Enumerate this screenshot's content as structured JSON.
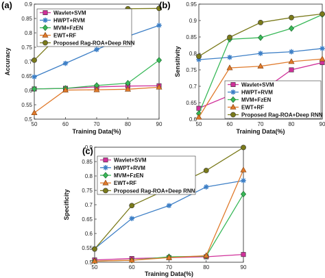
{
  "chart_data": [
    {
      "type": "line",
      "panel_label": "(a)",
      "xlabel": "Training Data(%)",
      "ylabel": "Accuracy",
      "x": [
        50,
        60,
        70,
        80,
        90
      ],
      "xticks": [
        "50",
        "60",
        "70",
        "80",
        "90"
      ],
      "ylim": [
        0.5,
        0.9
      ],
      "yticks": [
        "0.5",
        "0.55",
        "0.6",
        "0.65",
        "0.7",
        "0.75",
        "0.8",
        "0.85",
        "0.9"
      ],
      "legend_position": "top-left",
      "series": [
        {
          "name": "Wavlet+SVM",
          "color": "#d0309a",
          "marker": "square",
          "values": [
            0.605,
            0.607,
            0.612,
            0.615,
            0.616
          ]
        },
        {
          "name": "HWPT+RVM",
          "color": "#3d7fc6",
          "marker": "star",
          "values": [
            0.647,
            0.694,
            0.742,
            0.788,
            0.826
          ]
        },
        {
          "name": "MVM+FzEN",
          "color": "#38b858",
          "marker": "diamond",
          "values": [
            0.605,
            0.607,
            0.617,
            0.625,
            0.705
          ]
        },
        {
          "name": "EWT+RF",
          "color": "#e07a2b",
          "marker": "triangle",
          "values": [
            0.522,
            0.601,
            0.602,
            0.604,
            0.611
          ]
        },
        {
          "name": "Proposed Rag-ROA+Deep RNN",
          "color": "#7a7a1a",
          "marker": "circle",
          "values": [
            0.705,
            0.814,
            0.861,
            0.884,
            0.885
          ]
        }
      ]
    },
    {
      "type": "line",
      "panel_label": "(b)",
      "xlabel": "Training Data(%)",
      "ylabel": "Sensitivity",
      "x": [
        50,
        60,
        70,
        80,
        90
      ],
      "xticks": [
        "50",
        "60",
        "70",
        "80",
        "90"
      ],
      "ylim": [
        0.6,
        0.95
      ],
      "yticks": [
        "0.6",
        "0.65",
        "0.7",
        "0.75",
        "0.8",
        "0.85",
        "0.9",
        "0.95"
      ],
      "legend_position": "bottom-right",
      "series": [
        {
          "name": "Wavlet+SVM",
          "color": "#d0309a",
          "marker": "square",
          "values": [
            0.633,
            0.672,
            0.683,
            0.75,
            0.772
          ]
        },
        {
          "name": "HWPT+RVM",
          "color": "#3d7fc6",
          "marker": "star",
          "values": [
            0.781,
            0.788,
            0.8,
            0.805,
            0.815
          ]
        },
        {
          "name": "MVM+FzEN",
          "color": "#38b858",
          "marker": "diamond",
          "values": [
            0.617,
            0.843,
            0.848,
            0.876,
            0.918
          ]
        },
        {
          "name": "EWT+RF",
          "color": "#e07a2b",
          "marker": "triangle",
          "values": [
            0.606,
            0.756,
            0.761,
            0.775,
            0.783
          ]
        },
        {
          "name": "Proposed Rag-ROA+Deep RNN",
          "color": "#7a7a1a",
          "marker": "circle",
          "values": [
            0.791,
            0.849,
            0.894,
            0.909,
            0.92
          ]
        }
      ]
    },
    {
      "type": "line",
      "panel_label": "(c)",
      "xlabel": "Training Data(%)",
      "ylabel": "Specificity",
      "x": [
        50,
        60,
        70,
        80,
        90
      ],
      "xticks": [
        "50",
        "60",
        "70",
        "80",
        "90"
      ],
      "ylim": [
        0.5,
        0.9
      ],
      "yticks": [
        "0.5",
        "0.55",
        "0.6",
        "0.65",
        "0.7",
        "0.75",
        "0.8",
        "0.85",
        "0.9"
      ],
      "legend_position": "top-left",
      "series": [
        {
          "name": "Wavlet+SVM",
          "color": "#d0309a",
          "marker": "square",
          "values": [
            0.508,
            0.513,
            0.516,
            0.519,
            0.527
          ]
        },
        {
          "name": "HWPT+RVM",
          "color": "#3d7fc6",
          "marker": "star",
          "values": [
            0.547,
            0.652,
            0.697,
            0.762,
            0.784
          ]
        },
        {
          "name": "MVM+FzEN",
          "color": "#38b858",
          "marker": "diamond",
          "values": [
            0.504,
            0.507,
            0.519,
            0.521,
            0.737
          ]
        },
        {
          "name": "EWT+RF",
          "color": "#e07a2b",
          "marker": "triangle",
          "values": [
            0.504,
            0.507,
            0.516,
            0.523,
            0.821
          ]
        },
        {
          "name": "Proposed Rag-ROA+Deep RNN",
          "color": "#7a7a1a",
          "marker": "circle",
          "values": [
            0.546,
            0.697,
            0.757,
            0.819,
            0.899
          ]
        }
      ]
    }
  ]
}
